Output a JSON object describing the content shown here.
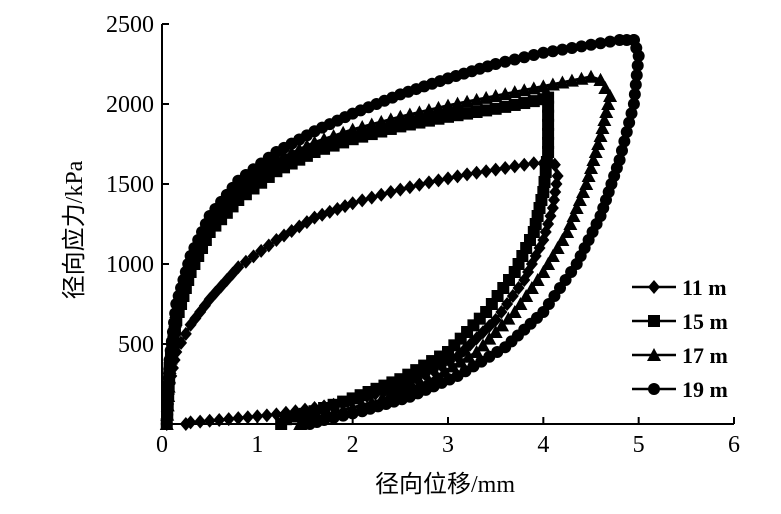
{
  "chart_data": {
    "type": "scatter",
    "title": "",
    "xlabel": "径向位移/mm",
    "ylabel": "径向应力/kPa",
    "xlim": [
      0,
      6
    ],
    "ylim": [
      0,
      2500
    ],
    "xticks": [
      0,
      1,
      2,
      3,
      4,
      5,
      6
    ],
    "yticks": [
      500,
      1000,
      1500,
      2000,
      2500
    ],
    "grid": false,
    "legend_position": "right",
    "series": [
      {
        "name": "11 m",
        "marker": "diamond",
        "loading": [
          [
            0.05,
            0
          ],
          [
            0.08,
            250
          ],
          [
            0.15,
            450
          ],
          [
            0.3,
            620
          ],
          [
            0.5,
            780
          ],
          [
            0.8,
            980
          ],
          [
            1.2,
            1150
          ],
          [
            1.6,
            1290
          ],
          [
            2.0,
            1380
          ],
          [
            2.4,
            1450
          ],
          [
            2.8,
            1510
          ],
          [
            3.2,
            1560
          ],
          [
            3.6,
            1600
          ],
          [
            3.9,
            1630
          ],
          [
            4.0,
            1630
          ],
          [
            4.12,
            1620
          ]
        ],
        "unloading": [
          [
            4.12,
            1620
          ],
          [
            4.15,
            1550
          ],
          [
            4.1,
            1350
          ],
          [
            4.0,
            1150
          ],
          [
            3.8,
            900
          ],
          [
            3.5,
            650
          ],
          [
            3.1,
            420
          ],
          [
            2.5,
            230
          ],
          [
            1.8,
            120
          ],
          [
            1.2,
            60
          ],
          [
            0.6,
            25
          ],
          [
            0.3,
            10
          ],
          [
            0.25,
            0
          ]
        ]
      },
      {
        "name": "15 m",
        "marker": "square",
        "loading": [
          [
            0.05,
            0
          ],
          [
            0.08,
            350
          ],
          [
            0.15,
            650
          ],
          [
            0.3,
            950
          ],
          [
            0.5,
            1200
          ],
          [
            0.8,
            1400
          ],
          [
            1.2,
            1580
          ],
          [
            1.6,
            1700
          ],
          [
            2.0,
            1780
          ],
          [
            2.5,
            1860
          ],
          [
            3.0,
            1920
          ],
          [
            3.5,
            1970
          ],
          [
            4.0,
            2030
          ]
        ],
        "unloading": [
          [
            4.05,
            2040
          ],
          [
            4.05,
            1700
          ],
          [
            4.0,
            1450
          ],
          [
            3.9,
            1200
          ],
          [
            3.7,
            950
          ],
          [
            3.4,
            700
          ],
          [
            3.0,
            450
          ],
          [
            2.5,
            280
          ],
          [
            2.0,
            160
          ],
          [
            1.6,
            80
          ],
          [
            1.3,
            30
          ],
          [
            1.25,
            0
          ]
        ]
      },
      {
        "name": "17 m",
        "marker": "triangle",
        "loading": [
          [
            0.05,
            0
          ],
          [
            0.08,
            350
          ],
          [
            0.15,
            700
          ],
          [
            0.3,
            1000
          ],
          [
            0.5,
            1250
          ],
          [
            0.8,
            1470
          ],
          [
            1.2,
            1650
          ],
          [
            1.6,
            1760
          ],
          [
            2.0,
            1840
          ],
          [
            2.5,
            1920
          ],
          [
            3.0,
            1990
          ],
          [
            3.5,
            2050
          ],
          [
            4.0,
            2110
          ],
          [
            4.5,
            2170
          ],
          [
            4.6,
            2150
          ]
        ],
        "unloading": [
          [
            4.6,
            2150
          ],
          [
            4.7,
            2050
          ],
          [
            4.6,
            1800
          ],
          [
            4.45,
            1500
          ],
          [
            4.25,
            1200
          ],
          [
            4.0,
            950
          ],
          [
            3.7,
            700
          ],
          [
            3.3,
            450
          ],
          [
            2.8,
            270
          ],
          [
            2.3,
            150
          ],
          [
            1.8,
            70
          ],
          [
            1.5,
            25
          ],
          [
            1.45,
            0
          ]
        ]
      },
      {
        "name": "19 m",
        "marker": "circle",
        "loading": [
          [
            0.05,
            0
          ],
          [
            0.08,
            400
          ],
          [
            0.15,
            750
          ],
          [
            0.3,
            1050
          ],
          [
            0.5,
            1300
          ],
          [
            0.8,
            1520
          ],
          [
            1.2,
            1700
          ],
          [
            1.6,
            1830
          ],
          [
            2.0,
            1940
          ],
          [
            2.5,
            2060
          ],
          [
            3.0,
            2160
          ],
          [
            3.5,
            2250
          ],
          [
            4.0,
            2320
          ],
          [
            4.5,
            2370
          ],
          [
            4.8,
            2400
          ],
          [
            4.95,
            2400
          ]
        ],
        "unloading": [
          [
            4.95,
            2400
          ],
          [
            5.0,
            2300
          ],
          [
            4.95,
            2000
          ],
          [
            4.8,
            1650
          ],
          [
            4.6,
            1300
          ],
          [
            4.35,
            1000
          ],
          [
            4.0,
            700
          ],
          [
            3.6,
            480
          ],
          [
            3.1,
            300
          ],
          [
            2.6,
            170
          ],
          [
            2.1,
            80
          ],
          [
            1.7,
            25
          ],
          [
            1.55,
            0
          ]
        ]
      }
    ]
  }
}
